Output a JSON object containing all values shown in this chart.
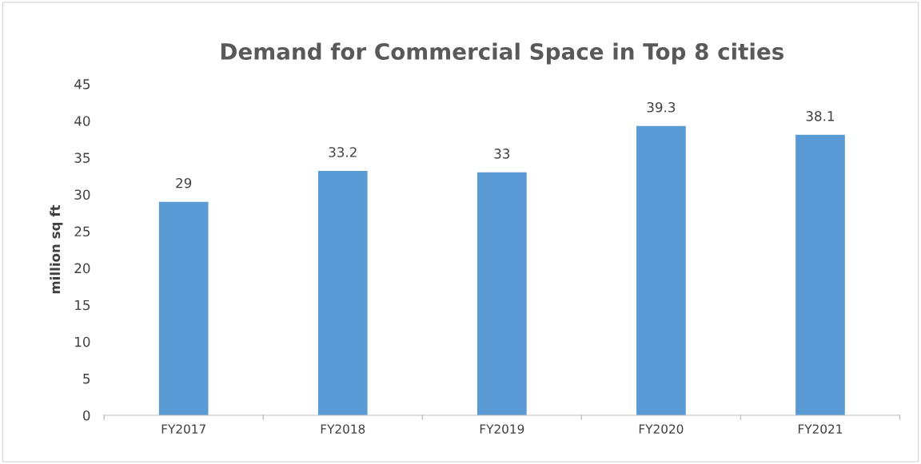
{
  "chart_data": {
    "type": "bar",
    "title": "Demand for Commercial Space in Top 8 cities",
    "ylabel": "million sq ft",
    "categories": [
      "FY2017",
      "FY2018",
      "FY2019",
      "FY2020",
      "FY2021"
    ],
    "values": [
      29,
      33.2,
      33,
      39.3,
      38.1
    ],
    "color": "#5b9bd5",
    "ylim": [
      0,
      45
    ],
    "yticks": [
      0,
      5,
      10,
      15,
      20,
      25,
      30,
      35,
      40,
      45
    ],
    "grid": false,
    "data_labels": true
  }
}
